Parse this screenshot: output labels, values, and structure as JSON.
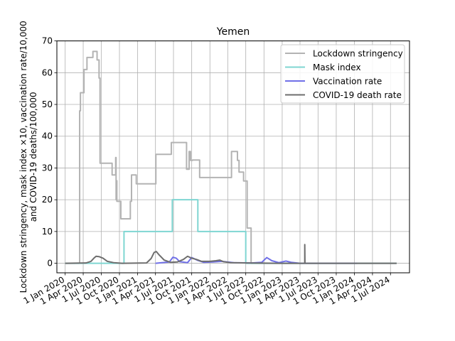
{
  "chart_data": {
    "type": "line",
    "title": "Yemen",
    "ylabel_lines": [
      "Lockdown stringency, mask index ×10, vaccination rate/10,000",
      "and COVID-19 deaths/100,000"
    ],
    "ylim": [
      -3,
      70
    ],
    "yticks": [
      0,
      10,
      20,
      30,
      40,
      50,
      60,
      70
    ],
    "xlim": [
      "2019-11-20",
      "2024-10-05"
    ],
    "xticks": [
      {
        "date": "2020-01-01",
        "label": "1 Jan 2020"
      },
      {
        "date": "2020-04-01",
        "label": "1 Apr 2020"
      },
      {
        "date": "2020-07-01",
        "label": "1 Jul 2020"
      },
      {
        "date": "2020-10-01",
        "label": "1 Oct 2020"
      },
      {
        "date": "2021-01-01",
        "label": "1 Jan 2021"
      },
      {
        "date": "2021-04-01",
        "label": "1 Apr 2021"
      },
      {
        "date": "2021-07-01",
        "label": "1 Jul 2021"
      },
      {
        "date": "2021-10-01",
        "label": "1 Oct 2021"
      },
      {
        "date": "2022-01-01",
        "label": "1 Jan 2022"
      },
      {
        "date": "2022-04-01",
        "label": "1 Apr 2022"
      },
      {
        "date": "2022-07-01",
        "label": "1 Jul 2022"
      },
      {
        "date": "2022-10-01",
        "label": "1 Oct 2022"
      },
      {
        "date": "2023-01-01",
        "label": "1 Jan 2023"
      },
      {
        "date": "2023-04-01",
        "label": "1 Apr 2023"
      },
      {
        "date": "2023-07-01",
        "label": "1 Jul 2023"
      },
      {
        "date": "2023-10-01",
        "label": "1 Oct 2023"
      },
      {
        "date": "2024-01-01",
        "label": "1 Jan 2024"
      },
      {
        "date": "2024-04-01",
        "label": "1 Apr 2024"
      },
      {
        "date": "2024-07-01",
        "label": "1 Jul 2024"
      }
    ],
    "grid": true,
    "legend_position": "top-right",
    "series": [
      {
        "name": "Lockdown stringency",
        "color": "#b3b3b3",
        "step": true,
        "points": [
          [
            "2020-01-01",
            0
          ],
          [
            "2020-03-14",
            0
          ],
          [
            "2020-03-14",
            48
          ],
          [
            "2020-03-18",
            53.7
          ],
          [
            "2020-04-05",
            61
          ],
          [
            "2020-04-20",
            64.8
          ],
          [
            "2020-05-20",
            66.7
          ],
          [
            "2020-06-10",
            64
          ],
          [
            "2020-06-20",
            58.3
          ],
          [
            "2020-06-25",
            31.5
          ],
          [
            "2020-08-25",
            27.8
          ],
          [
            "2020-09-12",
            33.3
          ],
          [
            "2020-09-14",
            20
          ],
          [
            "2020-09-16",
            26
          ],
          [
            "2020-09-18",
            19.5
          ],
          [
            "2020-10-08",
            14
          ],
          [
            "2020-11-25",
            19.5
          ],
          [
            "2020-12-01",
            27.8
          ],
          [
            "2020-12-25",
            25
          ],
          [
            "2021-04-03",
            34.3
          ],
          [
            "2021-06-20",
            38
          ],
          [
            "2021-09-05",
            29.6
          ],
          [
            "2021-09-18",
            35.2
          ],
          [
            "2021-09-25",
            32.4
          ],
          [
            "2021-10-05",
            32.5
          ],
          [
            "2021-11-10",
            27
          ],
          [
            "2022-04-20",
            35.2
          ],
          [
            "2022-05-20",
            32.4
          ],
          [
            "2022-05-28",
            28.7
          ],
          [
            "2022-06-20",
            25.9
          ],
          [
            "2022-07-08",
            11.1
          ],
          [
            "2022-07-28",
            0
          ],
          [
            "2024-08-01",
            0
          ]
        ]
      },
      {
        "name": "Mask index",
        "color": "#7fd6d2",
        "step": true,
        "points": [
          [
            "2020-01-01",
            0
          ],
          [
            "2020-10-24",
            0
          ],
          [
            "2020-10-24",
            10
          ],
          [
            "2021-06-25",
            10
          ],
          [
            "2021-06-25",
            20
          ],
          [
            "2021-11-01",
            20
          ],
          [
            "2021-11-01",
            10
          ],
          [
            "2022-07-01",
            10
          ],
          [
            "2022-07-01",
            0
          ],
          [
            "2024-08-01",
            0
          ]
        ]
      },
      {
        "name": "Vaccination rate",
        "color": "#7070e8",
        "step": false,
        "points": [
          [
            "2021-04-01",
            0
          ],
          [
            "2021-06-10",
            0.4
          ],
          [
            "2021-06-28",
            1.9
          ],
          [
            "2021-07-15",
            1.6
          ],
          [
            "2021-08-01",
            0.5
          ],
          [
            "2021-09-10",
            0.2
          ],
          [
            "2021-10-01",
            1.8
          ],
          [
            "2021-11-01",
            0.9
          ],
          [
            "2021-12-01",
            0.3
          ],
          [
            "2022-01-15",
            0.4
          ],
          [
            "2022-03-01",
            0.6
          ],
          [
            "2022-05-01",
            0.2
          ],
          [
            "2022-08-01",
            0.1
          ],
          [
            "2022-09-20",
            0.3
          ],
          [
            "2022-10-15",
            1.8
          ],
          [
            "2022-11-10",
            0.8
          ],
          [
            "2022-12-15",
            0.2
          ],
          [
            "2023-01-20",
            0.7
          ],
          [
            "2023-02-15",
            0.3
          ],
          [
            "2023-04-01",
            0
          ],
          [
            "2024-01-15",
            0
          ]
        ]
      },
      {
        "name": "COVID-19 death rate",
        "color": "#6e6e6e",
        "step": false,
        "points": [
          [
            "2020-01-01",
            0
          ],
          [
            "2020-04-15",
            0.1
          ],
          [
            "2020-05-10",
            0.6
          ],
          [
            "2020-05-25",
            1.6
          ],
          [
            "2020-06-05",
            2.2
          ],
          [
            "2020-06-20",
            2.1
          ],
          [
            "2020-07-10",
            1.6
          ],
          [
            "2020-08-01",
            0.6
          ],
          [
            "2020-09-01",
            0.2
          ],
          [
            "2020-10-15",
            0
          ],
          [
            "2021-02-15",
            0.1
          ],
          [
            "2021-03-10",
            1.5
          ],
          [
            "2021-03-25",
            3.4
          ],
          [
            "2021-04-05",
            3.7
          ],
          [
            "2021-04-20",
            2.6
          ],
          [
            "2021-05-15",
            1
          ],
          [
            "2021-06-15",
            0.3
          ],
          [
            "2021-07-20",
            0.4
          ],
          [
            "2021-08-20",
            1.2
          ],
          [
            "2021-09-10",
            2.2
          ],
          [
            "2021-10-01",
            1.6
          ],
          [
            "2021-10-25",
            1.2
          ],
          [
            "2021-11-20",
            0.6
          ],
          [
            "2022-01-01",
            0.6
          ],
          [
            "2022-02-01",
            0.8
          ],
          [
            "2022-02-20",
            1
          ],
          [
            "2022-03-10",
            0.5
          ],
          [
            "2022-04-15",
            0.2
          ],
          [
            "2022-07-01",
            0.1
          ],
          [
            "2023-01-01",
            0
          ],
          [
            "2023-04-25",
            0
          ],
          [
            "2023-04-25",
            5.9
          ],
          [
            "2023-04-26",
            0
          ],
          [
            "2024-08-01",
            0
          ]
        ]
      }
    ]
  }
}
